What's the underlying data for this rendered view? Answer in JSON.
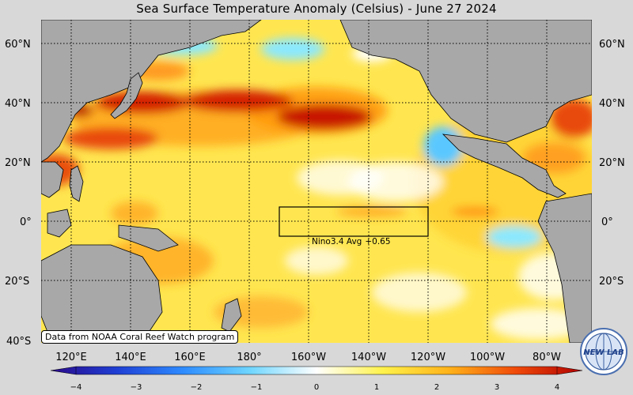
{
  "title": "Sea Surface Temperature Anomaly (Celsius) - June 27 2024",
  "lat_labels": [
    "60°N",
    "40°N",
    "20°N",
    "0°",
    "20°S",
    "40°S"
  ],
  "lon_labels": [
    "120°E",
    "140°E",
    "160°E",
    "180°",
    "160°W",
    "140°W",
    "120°W",
    "100°W",
    "80°W"
  ],
  "nino": {
    "label": "Nino3.4 Avg",
    "value": "+0.65"
  },
  "attribution": "Data from NOAA Coral Reef Watch program",
  "colorbar": {
    "ticks": [
      "−4",
      "−3",
      "−2",
      "−1",
      "0",
      "1",
      "2",
      "3",
      "4"
    ],
    "range": [
      -4,
      4
    ],
    "colors": [
      "#2a0a8a",
      "#1f3fd4",
      "#2e8cff",
      "#6fd6ff",
      "#ffffff",
      "#fff24a",
      "#ffb21a",
      "#f04a0a",
      "#b00000"
    ]
  },
  "logo": {
    "text": "NEW LAB",
    "icon": "globe-logo-icon"
  },
  "colors": {
    "land": "#a8a8a8",
    "ocean_base": "#ffe650",
    "warm": "#e83008",
    "cool": "#8ae8ff",
    "background": "#d8d8d8"
  }
}
